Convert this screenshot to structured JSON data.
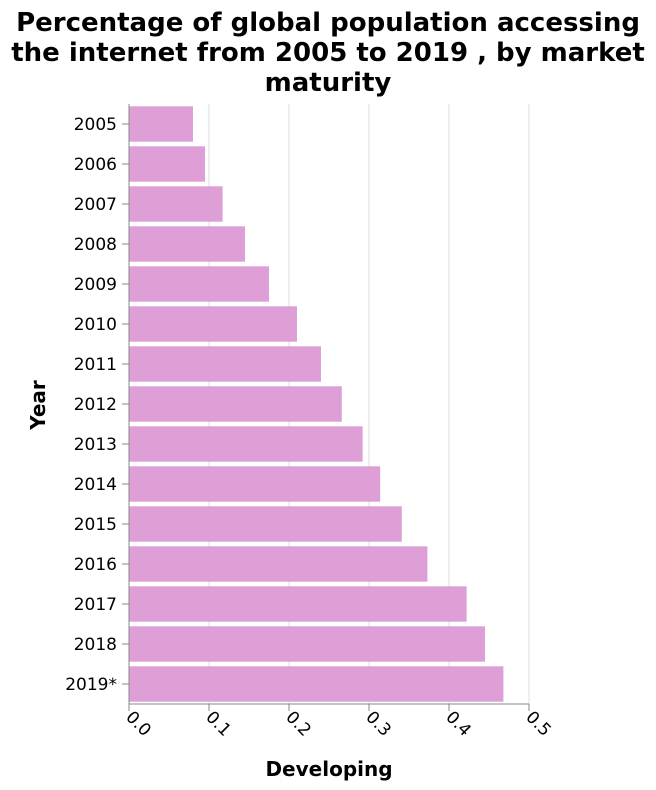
{
  "chart_data": {
    "type": "bar",
    "orientation": "horizontal",
    "title_lines": [
      "Percentage of global population accessing",
      "the internet from 2005 to 2019 , by market",
      "maturity"
    ],
    "xlabel": "Developing",
    "ylabel": "Year",
    "categories": [
      "2005",
      "2006",
      "2007",
      "2008",
      "2009",
      "2010",
      "2011",
      "2012",
      "2013",
      "2014",
      "2015",
      "2016",
      "2017",
      "2018",
      "2019*"
    ],
    "values": [
      0.08,
      0.095,
      0.117,
      0.145,
      0.175,
      0.21,
      0.24,
      0.266,
      0.292,
      0.314,
      0.341,
      0.373,
      0.422,
      0.445,
      0.468
    ],
    "xlim": [
      0,
      0.5
    ],
    "xticks": [
      "0.0",
      "0.1",
      "0.2",
      "0.3",
      "0.4",
      "0.5"
    ],
    "xtick_values": [
      0,
      0.1,
      0.2,
      0.3,
      0.4,
      0.5
    ],
    "bar_color": "#dd9fd6",
    "grid": true
  }
}
